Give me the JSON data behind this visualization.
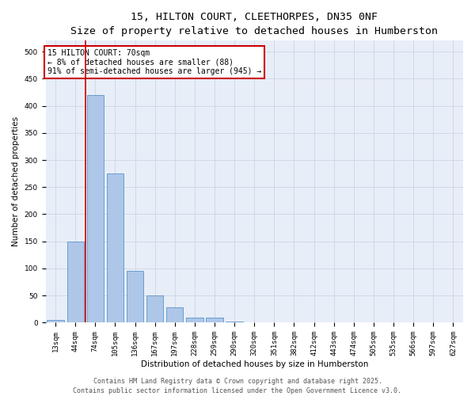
{
  "title_line1": "15, HILTON COURT, CLEETHORPES, DN35 0NF",
  "title_line2": "Size of property relative to detached houses in Humberston",
  "xlabel": "Distribution of detached houses by size in Humberston",
  "ylabel": "Number of detached properties",
  "categories": [
    "13sqm",
    "44sqm",
    "74sqm",
    "105sqm",
    "136sqm",
    "167sqm",
    "197sqm",
    "228sqm",
    "259sqm",
    "290sqm",
    "320sqm",
    "351sqm",
    "382sqm",
    "412sqm",
    "443sqm",
    "474sqm",
    "505sqm",
    "535sqm",
    "566sqm",
    "597sqm",
    "627sqm"
  ],
  "values": [
    5,
    150,
    420,
    275,
    95,
    50,
    28,
    10,
    9,
    2,
    0,
    0,
    0,
    0,
    0,
    0,
    0,
    0,
    0,
    0,
    0
  ],
  "bar_color": "#aec6e8",
  "bar_edge_color": "#5a96c8",
  "annotation_text": "15 HILTON COURT: 70sqm\n← 8% of detached houses are smaller (88)\n91% of semi-detached houses are larger (945) →",
  "annotation_box_color": "#ffffff",
  "annotation_box_edge_color": "#cc0000",
  "red_line_color": "#cc0000",
  "red_line_x": 1.5,
  "ylim": [
    0,
    520
  ],
  "yticks": [
    0,
    50,
    100,
    150,
    200,
    250,
    300,
    350,
    400,
    450,
    500
  ],
  "grid_color": "#d0d8e8",
  "bg_color": "#e8eef8",
  "footer_line1": "Contains HM Land Registry data © Crown copyright and database right 2025.",
  "footer_line2": "Contains public sector information licensed under the Open Government Licence v3.0.",
  "title_fontsize": 9.5,
  "subtitle_fontsize": 8.5,
  "axis_label_fontsize": 7.5,
  "tick_fontsize": 6.5,
  "annotation_fontsize": 7,
  "footer_fontsize": 6
}
